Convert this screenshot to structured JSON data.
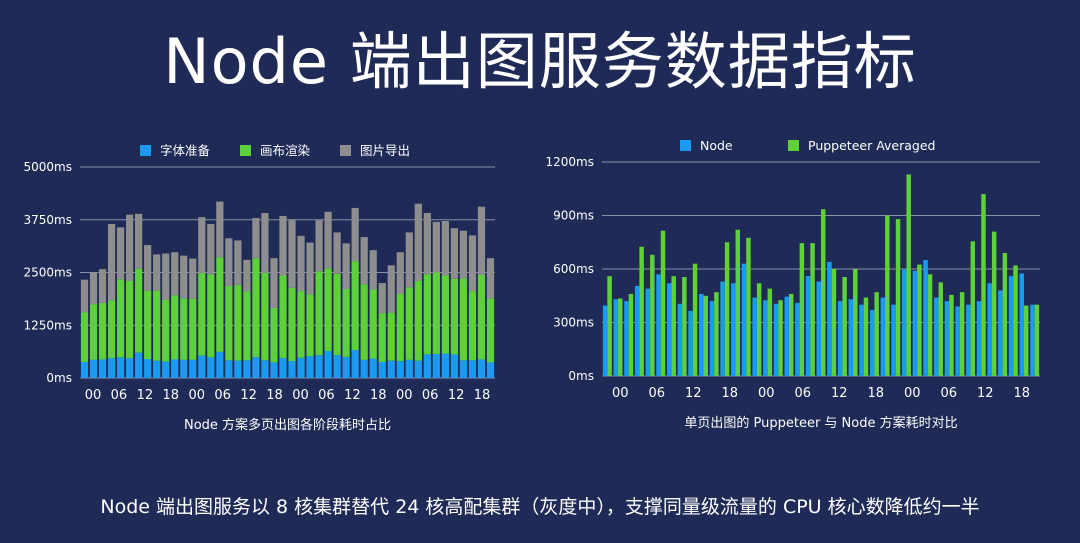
{
  "page": {
    "title": "Node 端出图服务数据指标",
    "footer": "Node 端出图服务以 8 核集群替代 24 核高配集群（灰度中），支撑同量级流量的 CPU 核心数降低约一半"
  },
  "colors": {
    "background": "#1f2a57",
    "blue": "#1a9bf0",
    "green": "#5dd03a",
    "gray": "#8e8e8e",
    "grid": "#8a90a8"
  },
  "chart_data": [
    {
      "type": "bar",
      "stacked": true,
      "title": "",
      "xlabel": "Node 方案多页出图各阶段耗时占比",
      "ylabel": "",
      "ylim": [
        0,
        5000
      ],
      "y_ticks": [
        0,
        1250,
        2500,
        3750,
        5000
      ],
      "y_tick_labels": [
        "0ms",
        "1250ms",
        "2500ms",
        "3750ms",
        "5000ms"
      ],
      "x_tick_labels": [
        "00",
        "06",
        "12",
        "18",
        "00",
        "06",
        "12",
        "18",
        "00",
        "06",
        "12",
        "18",
        "00",
        "06",
        "12",
        "18"
      ],
      "legend_position": "top",
      "grid": true,
      "series": [
        {
          "name": "字体准备",
          "color": "#1a9bf0",
          "values": [
            380,
            430,
            440,
            470,
            490,
            470,
            600,
            450,
            410,
            390,
            440,
            430,
            430,
            530,
            490,
            620,
            420,
            410,
            420,
            490,
            420,
            370,
            470,
            400,
            480,
            520,
            540,
            640,
            540,
            500,
            660,
            430,
            460,
            380,
            410,
            400,
            430,
            410,
            560,
            570,
            580,
            560,
            420,
            420,
            440,
            370
          ]
        },
        {
          "name": "画布渲染",
          "color": "#5dd03a",
          "values": [
            1180,
            1320,
            1340,
            1370,
            1850,
            1830,
            1990,
            1620,
            1660,
            1460,
            1520,
            1460,
            1450,
            1960,
            1970,
            2240,
            1760,
            1800,
            1630,
            2350,
            2070,
            1290,
            1960,
            1740,
            1580,
            1460,
            1990,
            1960,
            1930,
            1610,
            2110,
            1790,
            1640,
            1150,
            1140,
            1590,
            1720,
            1890,
            1900,
            1930,
            1850,
            1790,
            1940,
            1640,
            2000,
            1520
          ]
        },
        {
          "name": "图片导出",
          "color": "#8e8e8e",
          "values": [
            770,
            750,
            800,
            1810,
            1230,
            1570,
            1300,
            1080,
            860,
            1100,
            1020,
            1010,
            950,
            1320,
            1190,
            1320,
            1130,
            1050,
            750,
            950,
            1420,
            1180,
            1410,
            1620,
            1310,
            1230,
            1210,
            1340,
            980,
            1080,
            1260,
            1120,
            930,
            720,
            1120,
            990,
            1300,
            1830,
            1450,
            1200,
            1290,
            1200,
            1130,
            1320,
            1620,
            950
          ]
        }
      ]
    },
    {
      "type": "bar",
      "stacked": false,
      "title": "",
      "xlabel": "单页出图的 Puppeteer 与 Node 方案耗时对比",
      "ylabel": "",
      "ylim": [
        0,
        1200
      ],
      "y_ticks": [
        0,
        300,
        600,
        900,
        1200
      ],
      "y_tick_labels": [
        "0ms",
        "300ms",
        "600ms",
        "900ms",
        "1200ms"
      ],
      "x_tick_labels": [
        "00",
        "06",
        "12",
        "18",
        "00",
        "06",
        "12",
        "18",
        "00",
        "06",
        "12",
        "18"
      ],
      "legend_position": "top",
      "grid": true,
      "series": [
        {
          "name": "Node",
          "color": "#1a9bf0",
          "values": [
            395,
            430,
            420,
            505,
            490,
            570,
            520,
            405,
            365,
            460,
            420,
            530,
            520,
            630,
            440,
            425,
            405,
            445,
            410,
            560,
            530,
            640,
            420,
            430,
            400,
            370,
            440,
            400,
            600,
            590,
            650,
            440,
            420,
            390,
            400,
            420,
            520,
            480,
            560,
            575,
            400
          ]
        },
        {
          "name": "Puppeteer Averaged",
          "color": "#5dd03a",
          "values": [
            560,
            435,
            460,
            725,
            680,
            815,
            560,
            555,
            630,
            450,
            470,
            750,
            820,
            775,
            520,
            490,
            425,
            460,
            745,
            745,
            935,
            600,
            555,
            600,
            440,
            470,
            900,
            880,
            1130,
            625,
            570,
            525,
            455,
            470,
            755,
            1020,
            810,
            690,
            620,
            395,
            400
          ]
        }
      ]
    }
  ]
}
